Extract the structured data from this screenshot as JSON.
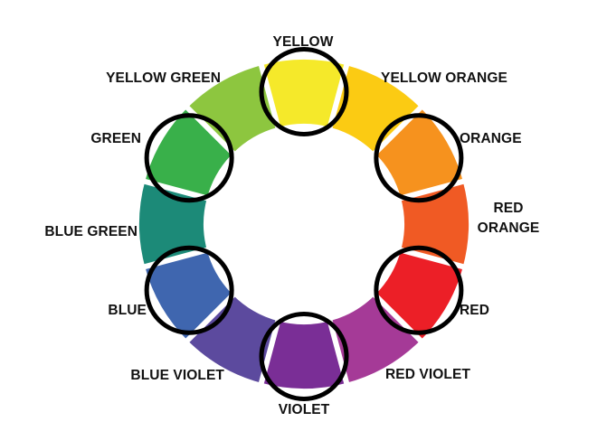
{
  "segments": [
    {
      "key": "yellow",
      "label": "YELLOW",
      "color": "#F5E92A",
      "highlighted": true
    },
    {
      "key": "yellow-orange",
      "label": "YELLOW ORANGE",
      "color": "#FBCB13",
      "highlighted": false
    },
    {
      "key": "orange",
      "label": "ORANGE",
      "color": "#F6921E",
      "highlighted": true
    },
    {
      "key": "red-orange",
      "label_lines": [
        "RED",
        "ORANGE"
      ],
      "color": "#F05A24",
      "highlighted": false
    },
    {
      "key": "red",
      "label": "RED",
      "color": "#EC1F27",
      "highlighted": true
    },
    {
      "key": "red-violet",
      "label": "RED VIOLET",
      "color": "#A53A97",
      "highlighted": false
    },
    {
      "key": "violet",
      "label": "VIOLET",
      "color": "#7A2E96",
      "highlighted": true
    },
    {
      "key": "blue-violet",
      "label": "BLUE VIOLET",
      "color": "#5C4A9E",
      "highlighted": false
    },
    {
      "key": "blue",
      "label": "BLUE",
      "color": "#3F66AF",
      "highlighted": true
    },
    {
      "key": "blue-green",
      "label": "BLUE GREEN",
      "color": "#1C8A78",
      "highlighted": false
    },
    {
      "key": "green",
      "label": "GREEN",
      "color": "#39B04A",
      "highlighted": true
    },
    {
      "key": "yellow-green",
      "label": "YELLOW GREEN",
      "color": "#8DC63F",
      "highlighted": false
    }
  ],
  "highlight_ring_color": "#000000"
}
